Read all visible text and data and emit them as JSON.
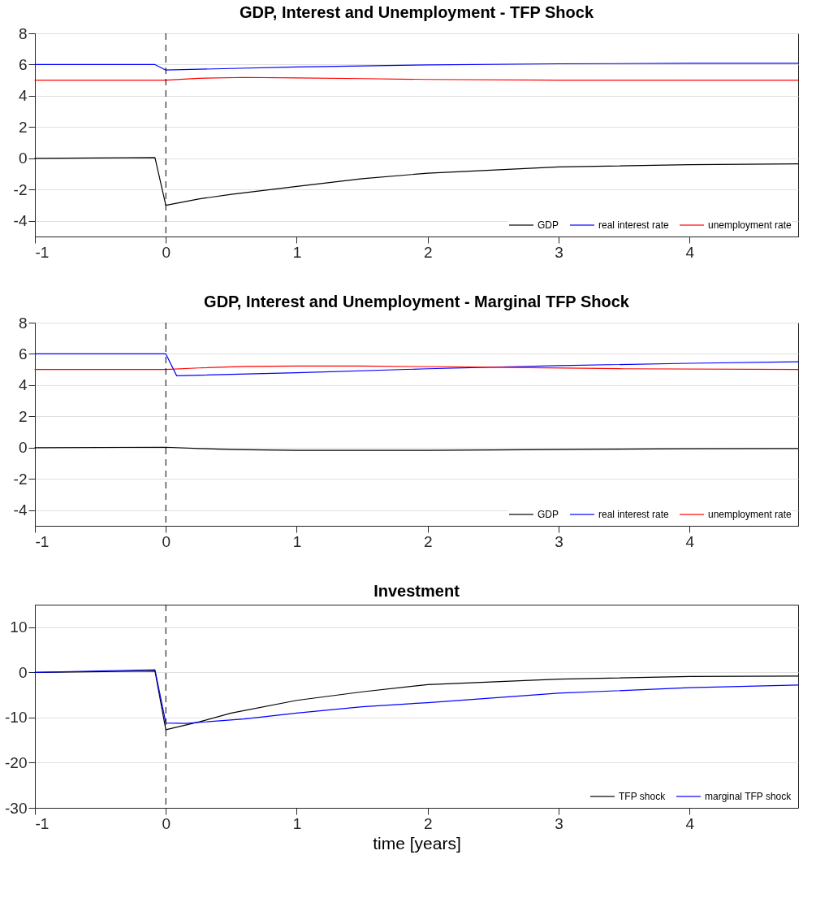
{
  "chart_data": [
    {
      "type": "line",
      "title": "GDP, Interest and Unemployment - TFP Shock",
      "xlim": [
        -1,
        4.83
      ],
      "xticks": [
        -1,
        0,
        1,
        2,
        3,
        4
      ],
      "ylim": [
        -5,
        8
      ],
      "yticks": [
        -4,
        -2,
        0,
        2,
        4,
        6,
        8
      ],
      "grid": "y",
      "legend": "bottom right",
      "line_style": "solid",
      "ref_lines": [
        {
          "axis": "x",
          "value": 0,
          "line_style": "dashed",
          "color": "#000000"
        }
      ],
      "series": [
        {
          "name": "GDP",
          "color": "#000000",
          "x": [
            -1,
            -0.083,
            0,
            0.25,
            0.5,
            1,
            1.5,
            2,
            3,
            4,
            4.83
          ],
          "values": [
            0,
            0.05,
            -3.0,
            -2.6,
            -2.3,
            -1.8,
            -1.3,
            -0.95,
            -0.55,
            -0.4,
            -0.35
          ]
        },
        {
          "name": "real interest rate",
          "color": "#0000ff",
          "x": [
            -1,
            -0.083,
            0,
            0.5,
            1,
            2,
            3,
            4,
            4.83
          ],
          "values": [
            6,
            6,
            5.65,
            5.75,
            5.85,
            5.98,
            6.05,
            6.08,
            6.08
          ]
        },
        {
          "name": "unemployment rate",
          "color": "#ff0000",
          "x": [
            -1,
            0,
            0.25,
            0.6,
            1,
            1.5,
            2,
            3,
            4,
            4.83
          ],
          "values": [
            5,
            5,
            5.12,
            5.18,
            5.15,
            5.1,
            5.05,
            5.0,
            5.0,
            5.0
          ]
        }
      ]
    },
    {
      "type": "line",
      "title": "GDP, Interest and Unemployment - Marginal TFP Shock",
      "xlim": [
        -1,
        4.83
      ],
      "xticks": [
        -1,
        0,
        1,
        2,
        3,
        4
      ],
      "ylim": [
        -5,
        8
      ],
      "yticks": [
        -4,
        -2,
        0,
        2,
        4,
        6,
        8
      ],
      "grid": "y",
      "legend": "bottom right",
      "line_style": "solid",
      "ref_lines": [
        {
          "axis": "x",
          "value": 0,
          "line_style": "dashed",
          "color": "#000000"
        }
      ],
      "series": [
        {
          "name": "GDP",
          "color": "#000000",
          "x": [
            -1,
            0,
            0.25,
            0.5,
            1,
            2,
            3,
            4,
            4.83
          ],
          "values": [
            0,
            0.03,
            -0.05,
            -0.12,
            -0.17,
            -0.17,
            -0.12,
            -0.07,
            -0.05
          ]
        },
        {
          "name": "real interest rate",
          "color": "#0000ff",
          "x": [
            -1,
            0,
            0.083,
            1,
            2,
            3,
            4,
            4.83
          ],
          "values": [
            6,
            6,
            4.6,
            4.8,
            5.05,
            5.25,
            5.4,
            5.5
          ]
        },
        {
          "name": "unemployment rate",
          "color": "#ff0000",
          "x": [
            -1,
            0,
            0.25,
            0.6,
            1,
            1.5,
            2.5,
            3.5,
            4.83
          ],
          "values": [
            5,
            5,
            5.1,
            5.2,
            5.22,
            5.22,
            5.15,
            5.05,
            5.0
          ]
        }
      ]
    },
    {
      "type": "line",
      "title": "Investment",
      "xlabel": "time [years]",
      "xlim": [
        -1,
        4.83
      ],
      "xticks": [
        -1,
        0,
        1,
        2,
        3,
        4
      ],
      "ylim": [
        -30,
        15
      ],
      "yticks": [
        -30,
        -20,
        -10,
        0,
        10
      ],
      "grid": "y",
      "legend": "bottom right",
      "line_style": "solid",
      "ref_lines": [
        {
          "axis": "x",
          "value": 0,
          "line_style": "dashed",
          "color": "#000000"
        }
      ],
      "series": [
        {
          "name": "TFP shock",
          "color": "#000000",
          "x": [
            -1,
            -0.083,
            0,
            0.25,
            0.5,
            1,
            1.5,
            2,
            3,
            4,
            4.83
          ],
          "values": [
            0,
            0.3,
            -12.7,
            -11,
            -9,
            -6.2,
            -4.3,
            -2.7,
            -1.5,
            -0.9,
            -0.8
          ]
        },
        {
          "name": "marginal TFP shock",
          "color": "#0000ff",
          "x": [
            -1,
            -0.083,
            0,
            0.15,
            0.6,
            1,
            1.5,
            2,
            3,
            4,
            4.83
          ],
          "values": [
            0,
            0.6,
            -11.2,
            -11.3,
            -10.3,
            -9.0,
            -7.6,
            -6.7,
            -4.6,
            -3.4,
            -2.8
          ]
        }
      ]
    }
  ]
}
